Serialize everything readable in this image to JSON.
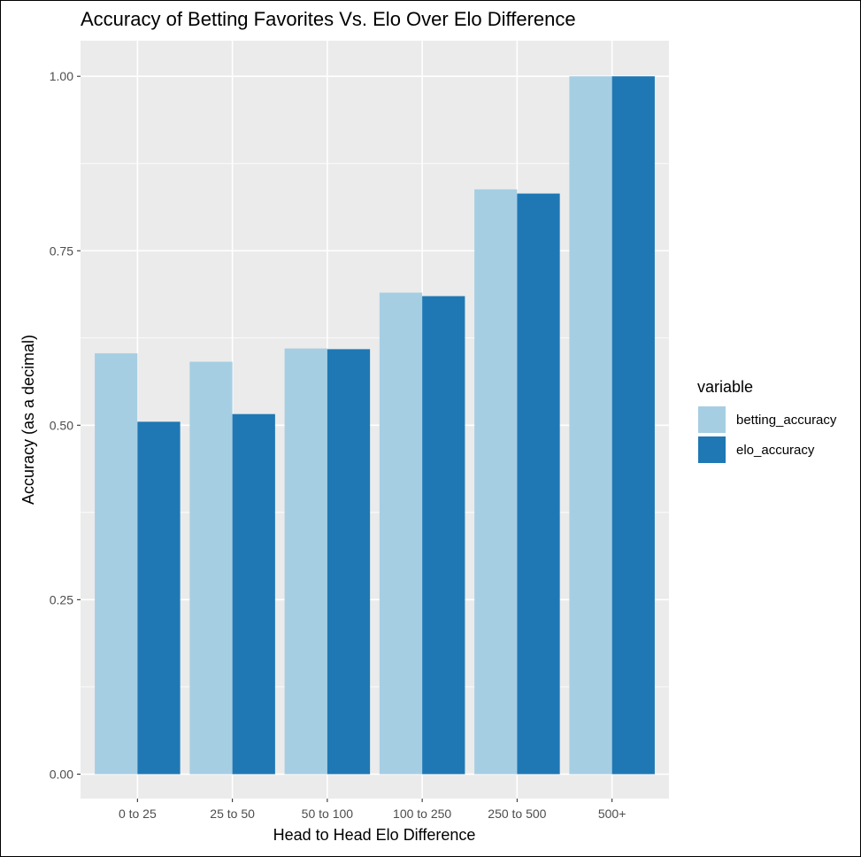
{
  "chart_data": {
    "type": "bar",
    "title": "Accuracy of Betting Favorites Vs. Elo Over Elo Difference",
    "xlabel": "Head to Head Elo Difference",
    "ylabel": "Accuracy (as a decimal)",
    "ylim": [
      -0.035,
      1.051
    ],
    "yticks": [
      0.0,
      0.25,
      0.5,
      0.75,
      1.0
    ],
    "ytick_labels": [
      "0.00",
      "0.25",
      "0.50",
      "0.75",
      "1.00"
    ],
    "categories": [
      "0 to 25",
      "25 to 50",
      "50 to 100",
      "100 to 250",
      "250 to 500",
      "500+"
    ],
    "series": [
      {
        "name": "betting_accuracy",
        "color": "#a6cee3",
        "values": [
          0.603,
          0.591,
          0.61,
          0.69,
          0.838,
          1.0
        ]
      },
      {
        "name": "elo_accuracy",
        "color": "#1f78b4",
        "values": [
          0.505,
          0.516,
          0.609,
          0.685,
          0.832,
          1.0
        ]
      }
    ],
    "legend": {
      "title": "variable",
      "position": "right"
    },
    "grid": true,
    "panel_background": "#ebebeb",
    "grid_color": "#ffffff"
  }
}
